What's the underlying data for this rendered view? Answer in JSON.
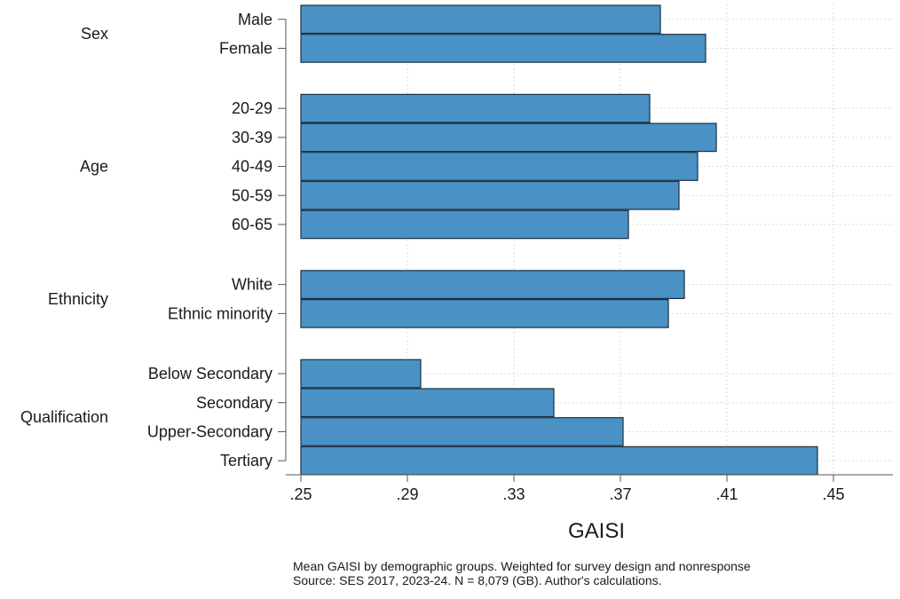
{
  "chart_data": {
    "type": "bar",
    "orientation": "horizontal",
    "xlabel": "GAISI",
    "xlim": [
      0.25,
      0.465
    ],
    "xticks": [
      0.25,
      0.29,
      0.33,
      0.37,
      0.41,
      0.45
    ],
    "xtick_labels": [
      ".25",
      ".29",
      ".33",
      ".37",
      ".41",
      ".45"
    ],
    "grid": true,
    "bar_color": "#4a92c5",
    "groups": [
      {
        "name": "Sex",
        "categories": [
          "Male",
          "Female"
        ],
        "values": [
          0.385,
          0.402
        ]
      },
      {
        "name": "Age",
        "categories": [
          "20-29",
          "30-39",
          "40-49",
          "50-59",
          "60-65"
        ],
        "values": [
          0.381,
          0.406,
          0.399,
          0.392,
          0.373
        ]
      },
      {
        "name": "Ethnicity",
        "categories": [
          "White",
          "Ethnic minority"
        ],
        "values": [
          0.394,
          0.388
        ]
      },
      {
        "name": "Qualification",
        "categories": [
          "Below Secondary",
          "Secondary",
          "Upper-Secondary",
          "Tertiary"
        ],
        "values": [
          0.295,
          0.345,
          0.371,
          0.444
        ]
      }
    ]
  },
  "notes": {
    "line1": "Mean GAISI by demographic groups. Weighted for survey design and nonresponse",
    "line2": "Source: SES 2017, 2023-24. N = 8,079 (GB). Author's calculations."
  }
}
